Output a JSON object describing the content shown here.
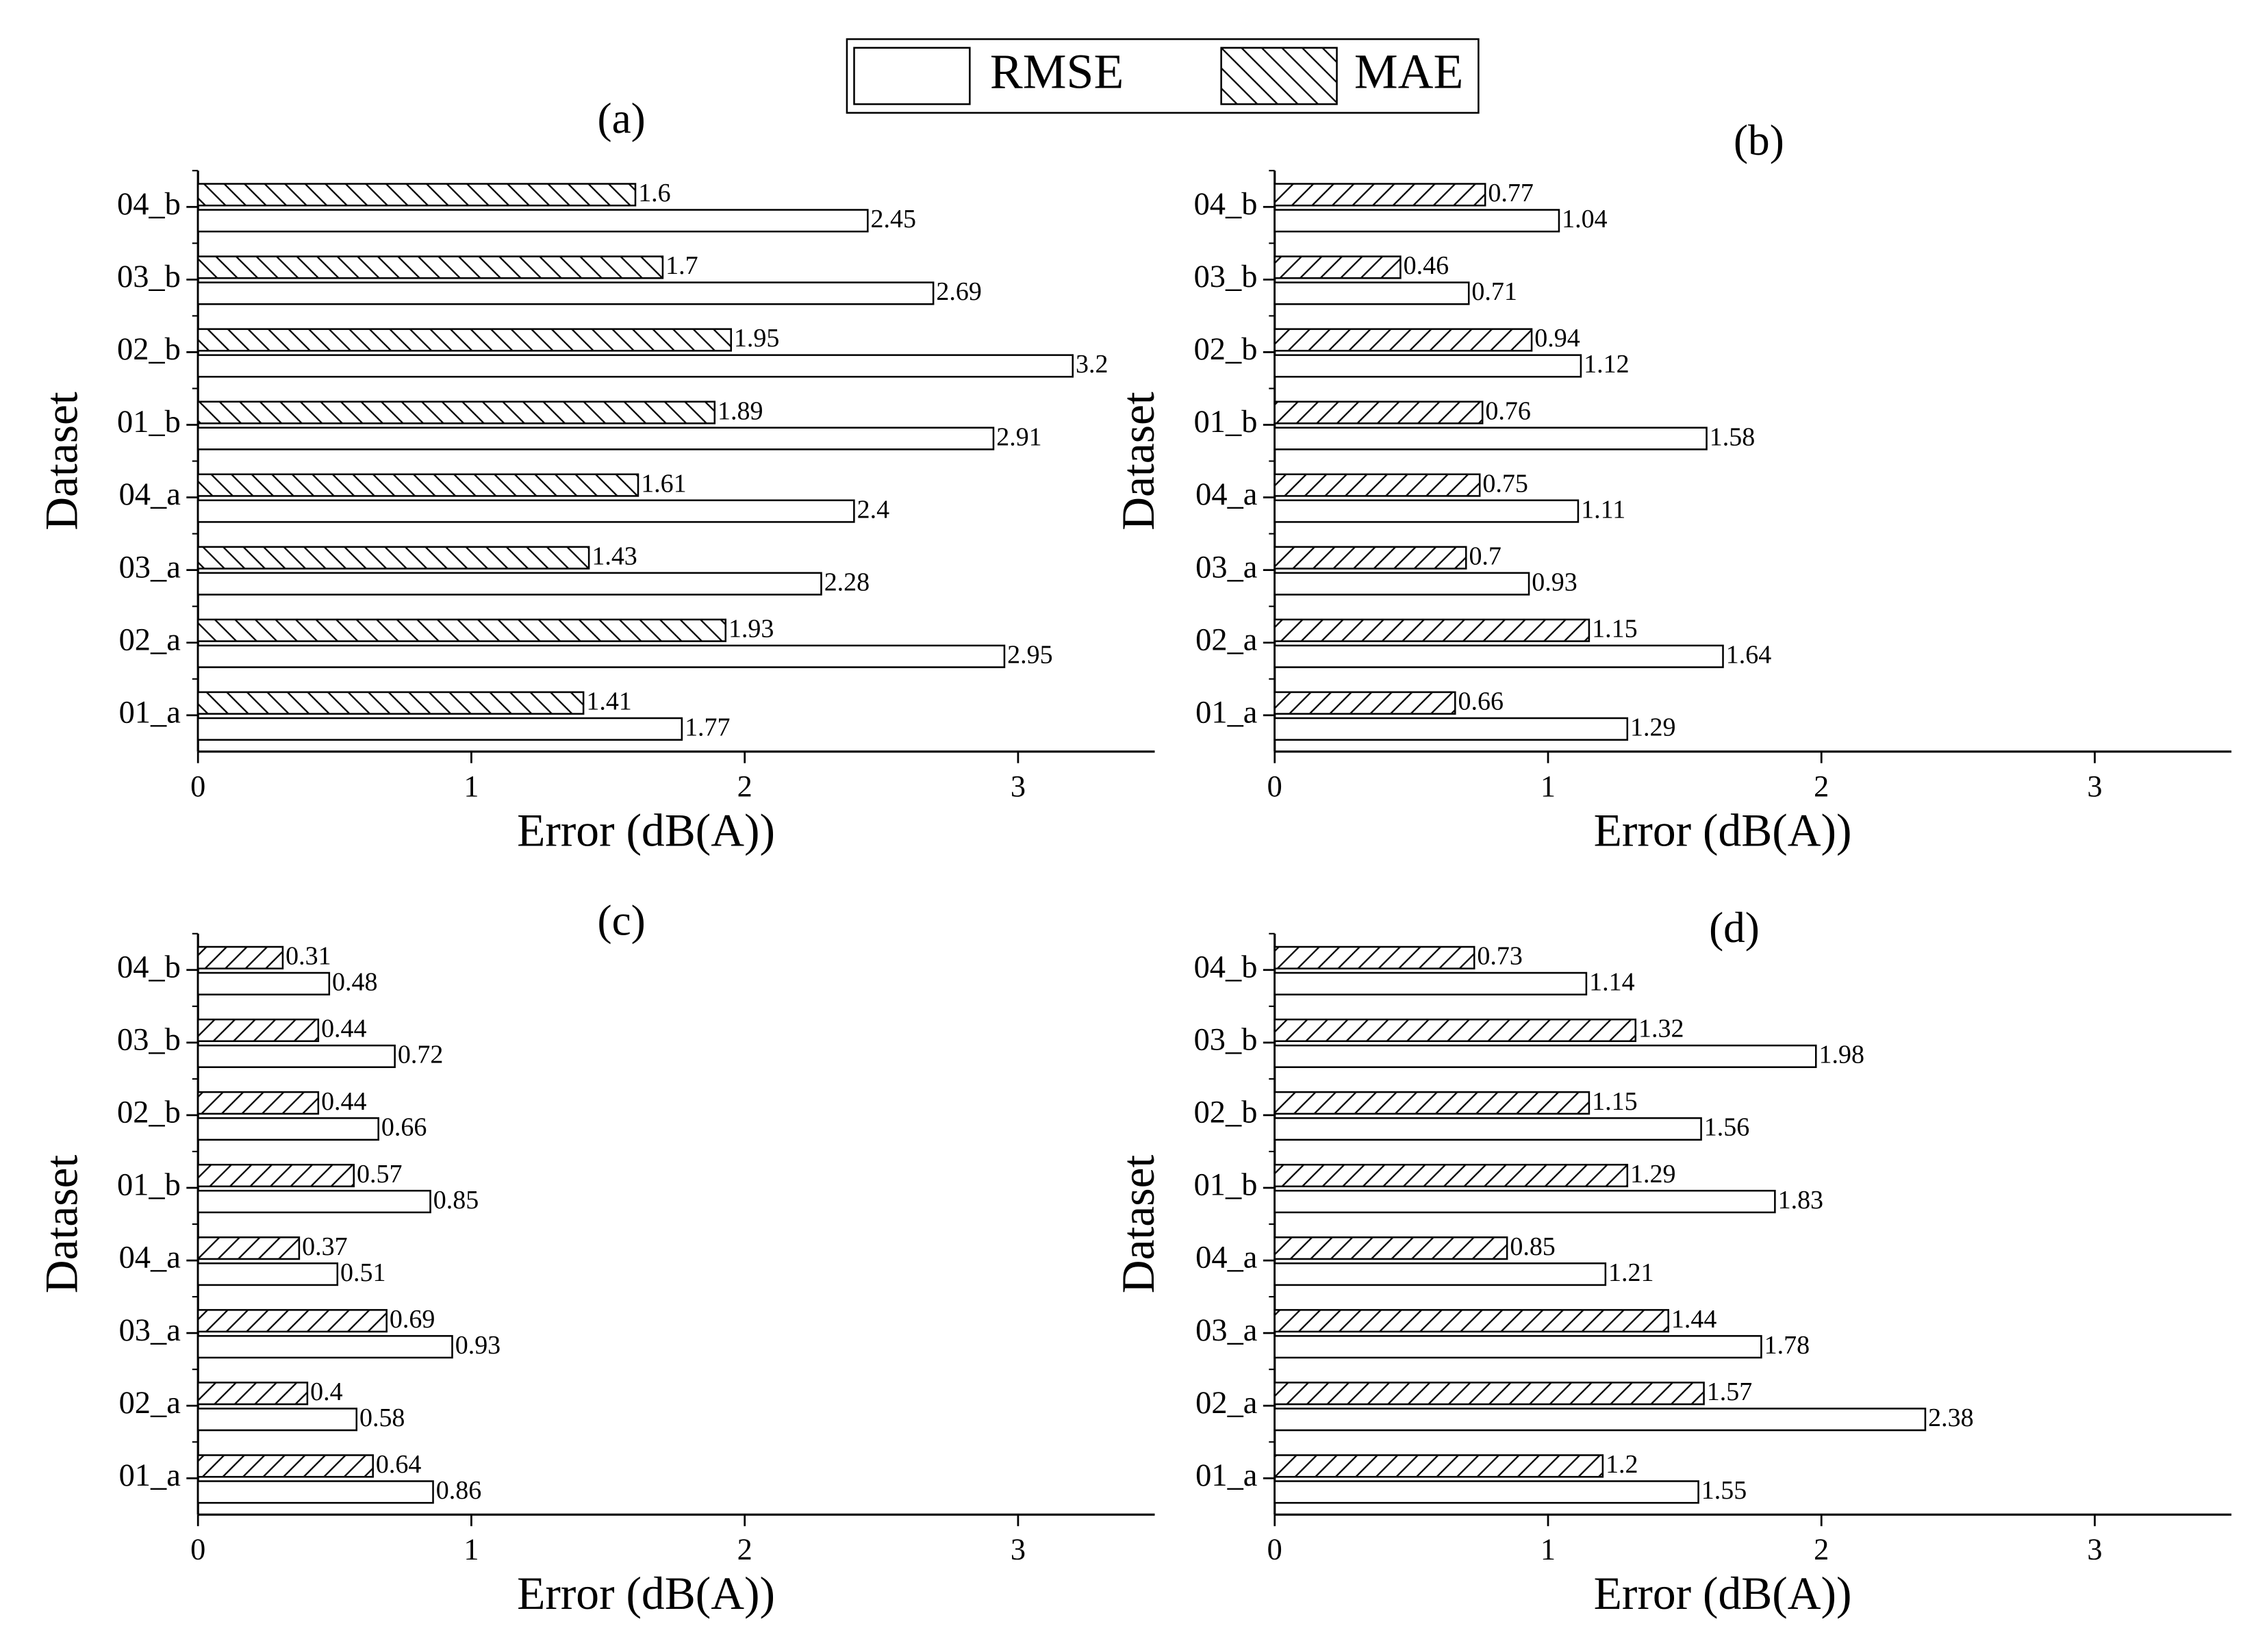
{
  "chart_data": [
    {
      "type": "bar",
      "orientation": "horizontal",
      "title": "(a)",
      "xlabel": "Error (dB(A))",
      "ylabel": "Dataset",
      "categories": [
        "01_a",
        "02_a",
        "03_a",
        "04_a",
        "01_b",
        "02_b",
        "03_b",
        "04_b"
      ],
      "series": [
        {
          "name": "RMSE",
          "color": "#ffffff",
          "edgecolor": "#000000",
          "hatch": "none",
          "values": [
            1.77,
            2.95,
            2.28,
            2.4,
            2.91,
            3.2,
            2.69,
            2.45
          ]
        },
        {
          "name": "MAE",
          "color": "#ffffff",
          "edgecolor": "#000000",
          "hatch": "back-diagonal",
          "values": [
            1.41,
            1.93,
            1.43,
            1.61,
            1.89,
            1.95,
            1.7,
            1.6
          ]
        }
      ],
      "xlim": [
        0,
        3.5
      ],
      "xticks": [
        0,
        1,
        2,
        3
      ]
    },
    {
      "type": "bar",
      "orientation": "horizontal",
      "title": "(b)",
      "xlabel": "Error (dB(A))",
      "ylabel": "Dataset",
      "categories": [
        "01_a",
        "02_a",
        "03_a",
        "04_a",
        "01_b",
        "02_b",
        "03_b",
        "04_b"
      ],
      "series": [
        {
          "color": "#ffffff",
          "edgecolor": "#000000",
          "hatch": "none",
          "values": [
            1.29,
            1.64,
            0.93,
            1.11,
            1.58,
            1.12,
            0.71,
            1.04
          ]
        },
        {
          "color": "#ffffff",
          "edgecolor": "#000000",
          "hatch": "diagonal",
          "values": [
            0.66,
            1.15,
            0.7,
            0.75,
            0.76,
            0.94,
            0.46,
            0.77
          ]
        }
      ],
      "xlim": [
        0,
        3.5
      ],
      "xticks": [
        0,
        1,
        2,
        3
      ]
    },
    {
      "type": "bar",
      "orientation": "horizontal",
      "title": "(c)",
      "xlabel": "Error (dB(A))",
      "ylabel": "Dataset",
      "categories": [
        "01_a",
        "02_a",
        "03_a",
        "04_a",
        "01_b",
        "02_b",
        "03_b",
        "04_b"
      ],
      "series": [
        {
          "color": "#ffffff",
          "edgecolor": "#000000",
          "hatch": "none",
          "values": [
            0.86,
            0.58,
            0.93,
            0.51,
            0.85,
            0.66,
            0.72,
            0.48
          ]
        },
        {
          "color": "#ffffff",
          "edgecolor": "#000000",
          "hatch": "diagonal",
          "values": [
            0.64,
            0.4,
            0.69,
            0.37,
            0.57,
            0.44,
            0.44,
            0.31
          ]
        }
      ],
      "xlim": [
        0,
        3.5
      ],
      "xticks": [
        0,
        1,
        2,
        3
      ]
    },
    {
      "type": "bar",
      "orientation": "horizontal",
      "title": "(d)",
      "xlabel": "Error (dB(A))",
      "ylabel": "Dataset",
      "categories": [
        "01_a",
        "02_a",
        "03_a",
        "04_a",
        "01_b",
        "02_b",
        "03_b",
        "04_b"
      ],
      "series": [
        {
          "color": "#ffffff",
          "edgecolor": "#000000",
          "hatch": "none",
          "values": [
            1.55,
            2.38,
            1.78,
            1.21,
            1.83,
            1.56,
            1.98,
            1.14
          ]
        },
        {
          "color": "#ffffff",
          "edgecolor": "#000000",
          "hatch": "diagonal",
          "values": [
            1.2,
            1.57,
            1.44,
            0.85,
            1.29,
            1.15,
            1.32,
            0.73
          ]
        }
      ],
      "xlim": [
        0,
        3.5
      ],
      "xticks": [
        0,
        1,
        2,
        3
      ]
    }
  ]
}
